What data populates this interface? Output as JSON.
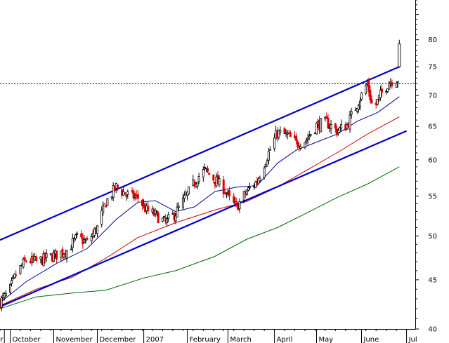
{
  "chart_data": {
    "type": "candlestick",
    "title": "",
    "xlabel": "",
    "ylabel": "",
    "y_scale": "log",
    "ylim": [
      40,
      88
    ],
    "xlim": [
      "2006-09-25",
      "2007-07-08"
    ],
    "grid": false,
    "legend": "none",
    "y_ticks": [
      40,
      45,
      50,
      55,
      60,
      65,
      70,
      75,
      80
    ],
    "x_ticks": [
      {
        "label": "ber",
        "date": "2006-09-28"
      },
      {
        "label": "October",
        "date": "2006-10-02"
      },
      {
        "label": "November",
        "date": "2006-11-01"
      },
      {
        "label": "December",
        "date": "2006-12-01"
      },
      {
        "label": "2007",
        "date": "2007-01-02"
      },
      {
        "label": "February",
        "date": "2007-02-01"
      },
      {
        "label": "March",
        "date": "2007-03-01"
      },
      {
        "label": "April",
        "date": "2007-04-02"
      },
      {
        "label": "May",
        "date": "2007-05-01"
      },
      {
        "label": "June",
        "date": "2007-06-01"
      },
      {
        "label": "Jul",
        "date": "2007-07-02"
      }
    ],
    "price_path": [
      [
        "2006-09-25",
        42.7
      ],
      [
        "2006-10-01",
        43.6
      ],
      [
        "2006-10-06",
        45.6
      ],
      [
        "2006-10-13",
        47.2
      ],
      [
        "2006-10-20",
        47.0
      ],
      [
        "2006-10-27",
        47.4
      ],
      [
        "2006-11-03",
        47.8
      ],
      [
        "2006-11-10",
        48.3
      ],
      [
        "2006-11-17",
        49.8
      ],
      [
        "2006-11-24",
        49.2
      ],
      [
        "2006-12-01",
        51.0
      ],
      [
        "2006-12-07",
        54.2
      ],
      [
        "2006-12-14",
        56.2
      ],
      [
        "2006-12-21",
        55.2
      ],
      [
        "2006-12-29",
        54.8
      ],
      [
        "2007-01-04",
        53.1
      ],
      [
        "2007-01-10",
        52.6
      ],
      [
        "2007-01-17",
        51.6
      ],
      [
        "2007-01-24",
        52.8
      ],
      [
        "2007-02-01",
        55.2
      ],
      [
        "2007-02-08",
        57.5
      ],
      [
        "2007-02-13",
        58.5
      ],
      [
        "2007-02-20",
        57.2
      ],
      [
        "2007-02-27",
        55.8
      ],
      [
        "2007-03-03",
        54.2
      ],
      [
        "2007-03-07",
        53.6
      ],
      [
        "2007-03-14",
        55.6
      ],
      [
        "2007-03-21",
        57.0
      ],
      [
        "2007-03-28",
        60.5
      ],
      [
        "2007-04-04",
        64.0
      ],
      [
        "2007-04-11",
        63.6
      ],
      [
        "2007-04-17",
        62.4
      ],
      [
        "2007-04-24",
        63.0
      ],
      [
        "2007-05-01",
        65.2
      ],
      [
        "2007-05-08",
        65.6
      ],
      [
        "2007-05-15",
        64.3
      ],
      [
        "2007-05-22",
        65.2
      ],
      [
        "2007-05-29",
        68.6
      ],
      [
        "2007-06-05",
        72.0
      ],
      [
        "2007-06-09",
        67.5
      ],
      [
        "2007-06-14",
        70.0
      ],
      [
        "2007-06-20",
        72.4
      ],
      [
        "2007-06-25",
        72.8
      ]
    ],
    "last_bar": {
      "date": "2007-06-27",
      "open": 75.0,
      "high": 80.0,
      "low": 74.8,
      "close": 79.2,
      "direction": "up"
    },
    "reference_line": {
      "value": 72.0,
      "style": "dashed",
      "color": "#000000"
    },
    "channel_lines": [
      {
        "name": "",
        "color": "#0000cc",
        "points": [
          [
            "2006-09-25",
            49.5
          ],
          [
            "2007-06-27",
            75.0
          ]
        ]
      },
      {
        "name": "",
        "color": "#0000cc",
        "points": [
          [
            "2006-09-25",
            42.2
          ],
          [
            "2007-07-02",
            64.3
          ]
        ]
      }
    ],
    "series": [
      {
        "name": "",
        "color": "#000099",
        "values": [
          [
            "2006-09-25",
            42.6
          ],
          [
            "2006-10-13",
            44.8
          ],
          [
            "2006-11-03",
            46.8
          ],
          [
            "2006-11-24",
            48.5
          ],
          [
            "2006-12-14",
            52.0
          ],
          [
            "2006-12-29",
            54.2
          ],
          [
            "2007-01-10",
            54.4
          ],
          [
            "2007-01-24",
            53.0
          ],
          [
            "2007-02-06",
            53.6
          ],
          [
            "2007-02-20",
            55.6
          ],
          [
            "2007-03-07",
            56.2
          ],
          [
            "2007-03-21",
            56.4
          ],
          [
            "2007-04-04",
            59.5
          ],
          [
            "2007-04-17",
            61.4
          ],
          [
            "2007-05-01",
            62.6
          ],
          [
            "2007-05-15",
            63.8
          ],
          [
            "2007-05-29",
            65.8
          ],
          [
            "2007-06-12",
            67.2
          ],
          [
            "2007-06-27",
            69.8
          ]
        ]
      },
      {
        "name": "",
        "color": "#cc0000",
        "values": [
          [
            "2006-09-25",
            42.3
          ],
          [
            "2006-10-20",
            44.0
          ],
          [
            "2006-11-14",
            45.3
          ],
          [
            "2006-12-07",
            47.4
          ],
          [
            "2006-12-29",
            49.8
          ],
          [
            "2007-01-24",
            51.6
          ],
          [
            "2007-02-20",
            53.2
          ],
          [
            "2007-03-14",
            54.3
          ],
          [
            "2007-04-04",
            56.2
          ],
          [
            "2007-04-24",
            58.5
          ],
          [
            "2007-05-15",
            61.0
          ],
          [
            "2007-06-05",
            63.8
          ],
          [
            "2007-06-27",
            66.5
          ]
        ]
      },
      {
        "name": "",
        "color": "#006600",
        "values": [
          [
            "2006-09-25",
            42.0
          ],
          [
            "2006-10-20",
            43.2
          ],
          [
            "2006-11-14",
            43.6
          ],
          [
            "2006-12-07",
            43.9
          ],
          [
            "2007-01-02",
            45.2
          ],
          [
            "2007-01-24",
            46.0
          ],
          [
            "2007-02-20",
            47.6
          ],
          [
            "2007-03-14",
            49.6
          ],
          [
            "2007-04-04",
            51.0
          ],
          [
            "2007-04-24",
            52.8
          ],
          [
            "2007-05-15",
            54.8
          ],
          [
            "2007-06-05",
            56.6
          ],
          [
            "2007-06-27",
            59.0
          ]
        ]
      }
    ],
    "candle_colors": {
      "up": "#000000",
      "down": "#dd0000",
      "up_fill": "#ffffff"
    }
  }
}
